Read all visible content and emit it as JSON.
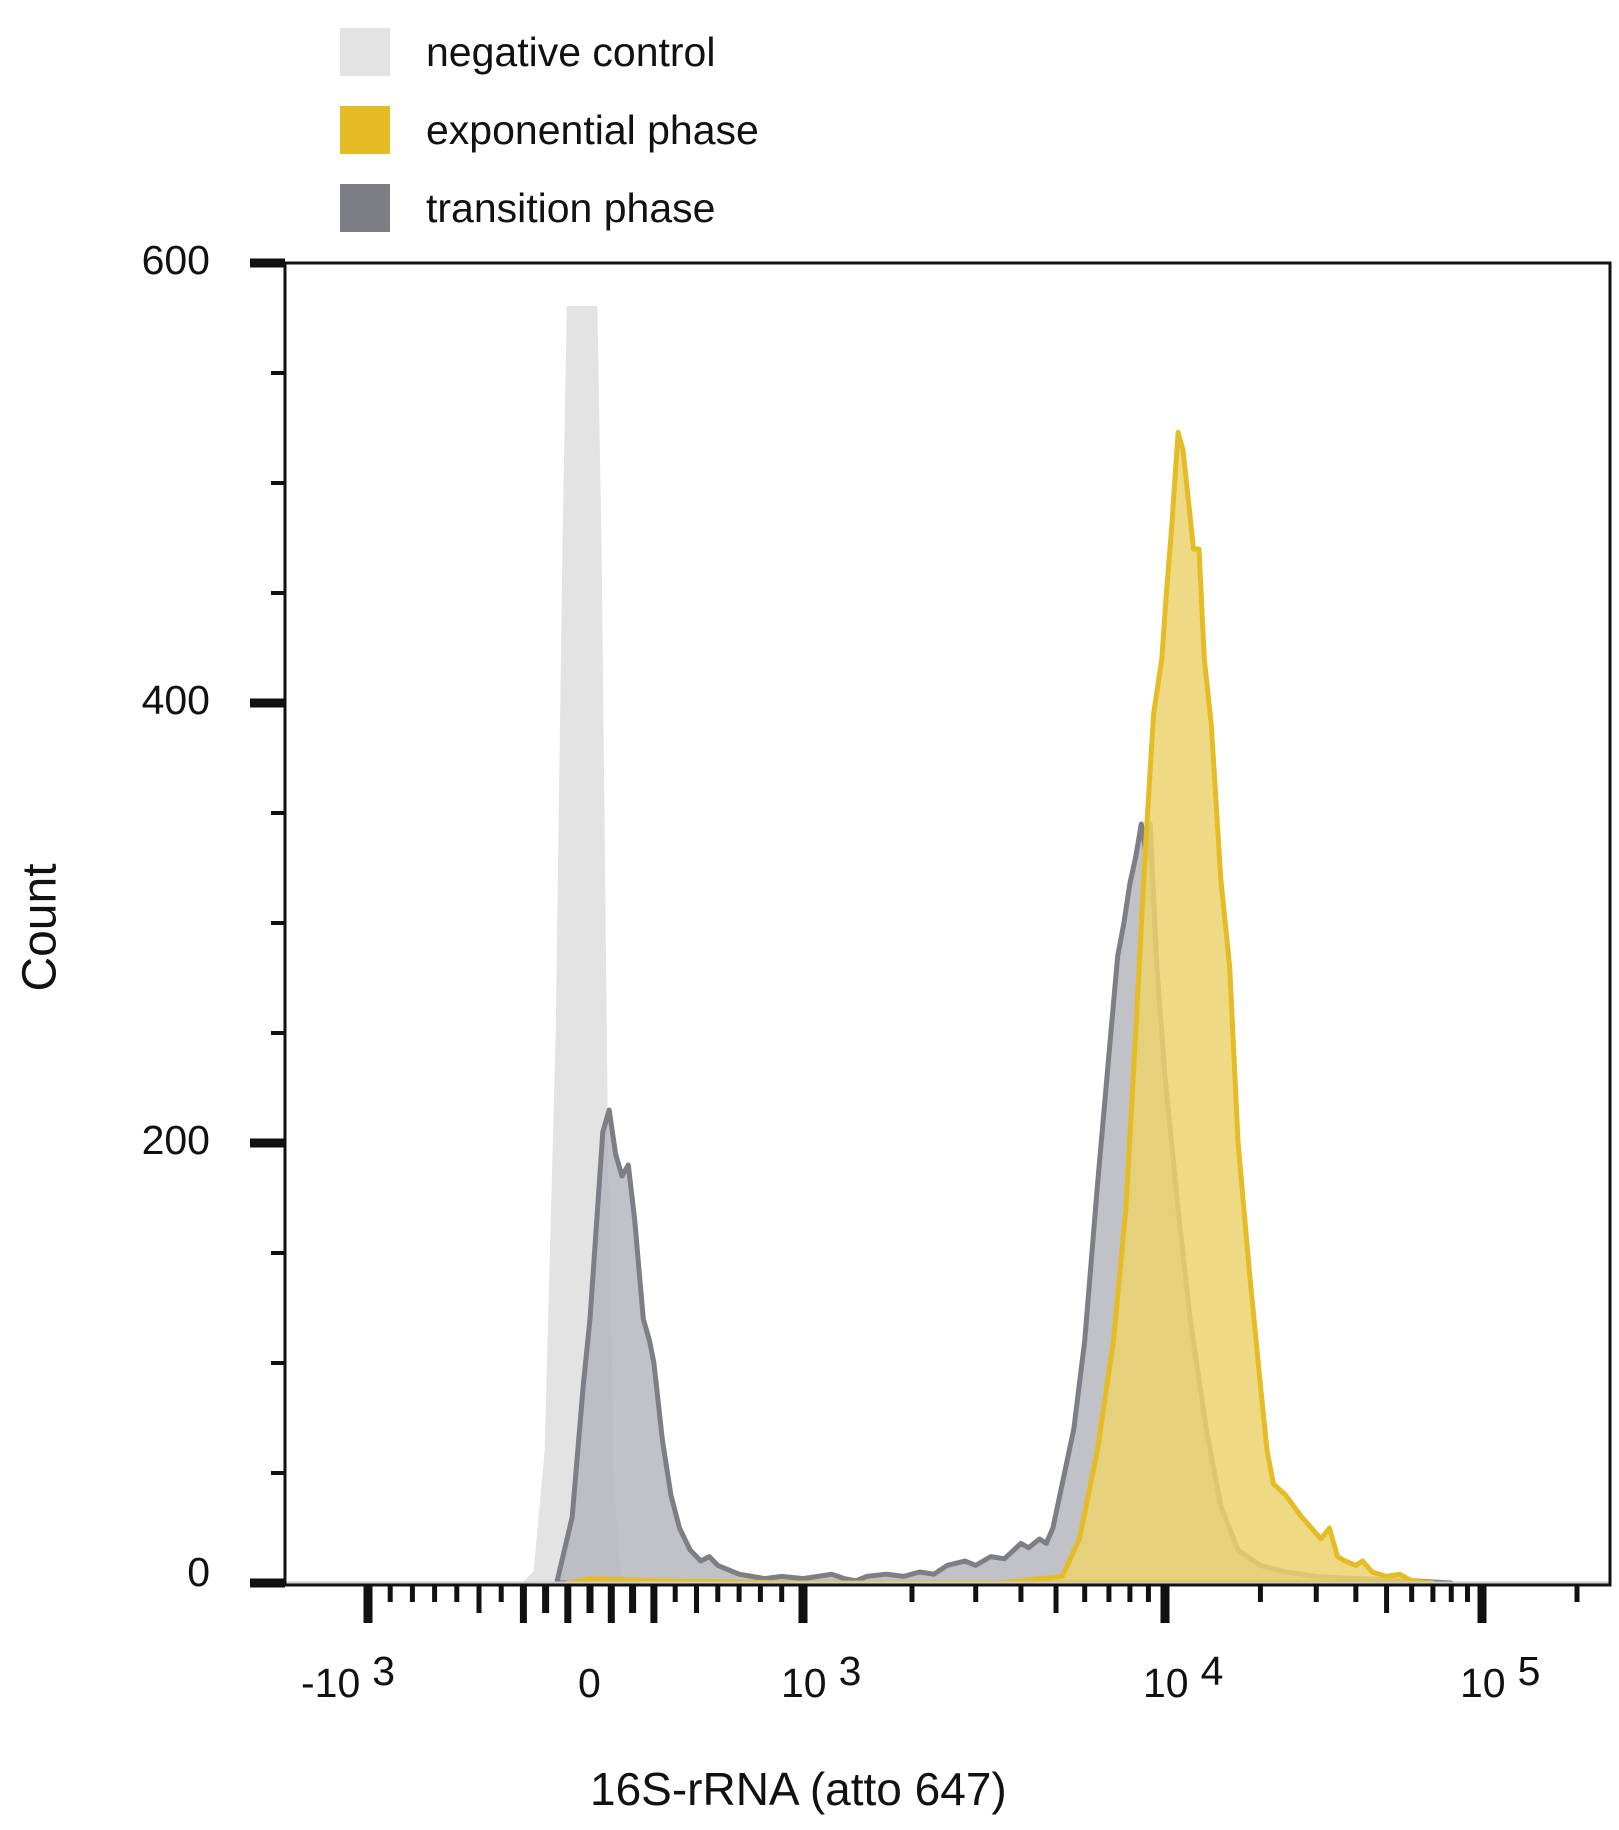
{
  "legend": [
    {
      "label": "negative control",
      "color": "#e3e3e3"
    },
    {
      "label": "exponential phase",
      "color": "#e6bc26"
    },
    {
      "label": "transition phase",
      "color": "#7d7e86"
    }
  ],
  "axes": {
    "ylabel": "Count",
    "xlabel": "16S-rRNA (atto 647)",
    "yticks": [
      {
        "value": 0,
        "label": "0"
      },
      {
        "value": 200,
        "label": "200"
      },
      {
        "value": 400,
        "label": "400"
      },
      {
        "value": 600,
        "label": "600"
      }
    ],
    "xticks": [
      {
        "base": "-10",
        "exp": "3",
        "value": -1000
      },
      {
        "base": "0",
        "exp": "",
        "value": 0
      },
      {
        "base": "10",
        "exp": "3",
        "value": 1000
      },
      {
        "base": "10",
        "exp": "4",
        "value": 10000
      },
      {
        "base": "10",
        "exp": "5",
        "value": 100000
      }
    ]
  },
  "chart_data": {
    "type": "area",
    "title": "",
    "xlabel": "16S-rRNA (atto 647)",
    "ylabel": "Count",
    "xscale": "biexponential",
    "xticks": [
      "-10^3",
      "0",
      "10^3",
      "10^4",
      "10^5"
    ],
    "yticks": [
      0,
      200,
      400,
      600
    ],
    "ylim": [
      0,
      600
    ],
    "xlim": [
      -2500,
      200000
    ],
    "grid": false,
    "legend_position": "top-left, above plot",
    "series": [
      {
        "name": "negative control",
        "fill": "#e3e3e3",
        "stroke": "#e3e3e3",
        "points": [
          [
            -300,
            0
          ],
          [
            -250,
            5
          ],
          [
            -200,
            60
          ],
          [
            -150,
            250
          ],
          [
            -120,
            470
          ],
          [
            -100,
            580
          ],
          [
            -50,
            580
          ],
          [
            0,
            580
          ],
          [
            30,
            580
          ],
          [
            50,
            470
          ],
          [
            80,
            200
          ],
          [
            110,
            40
          ],
          [
            140,
            5
          ],
          [
            170,
            0
          ]
        ]
      },
      {
        "name": "transition phase",
        "fill": "#b6b7bd",
        "stroke": "#7d7e86",
        "points": [
          [
            -150,
            0
          ],
          [
            -80,
            30
          ],
          [
            -30,
            90
          ],
          [
            0,
            120
          ],
          [
            60,
            205
          ],
          [
            90,
            215
          ],
          [
            120,
            195
          ],
          [
            150,
            185
          ],
          [
            180,
            190
          ],
          [
            210,
            165
          ],
          [
            250,
            120
          ],
          [
            280,
            110
          ],
          [
            300,
            100
          ],
          [
            340,
            65
          ],
          [
            380,
            40
          ],
          [
            420,
            25
          ],
          [
            470,
            15
          ],
          [
            520,
            10
          ],
          [
            560,
            12
          ],
          [
            600,
            8
          ],
          [
            650,
            6
          ],
          [
            700,
            4
          ],
          [
            760,
            3
          ],
          [
            820,
            2
          ],
          [
            900,
            3
          ],
          [
            1000,
            2
          ],
          [
            1100,
            3
          ],
          [
            1200,
            4
          ],
          [
            1300,
            2
          ],
          [
            1400,
            1
          ],
          [
            1500,
            3
          ],
          [
            1700,
            4
          ],
          [
            1900,
            3
          ],
          [
            2100,
            5
          ],
          [
            2300,
            4
          ],
          [
            2500,
            8
          ],
          [
            2800,
            10
          ],
          [
            3000,
            8
          ],
          [
            3300,
            12
          ],
          [
            3600,
            11
          ],
          [
            4000,
            18
          ],
          [
            4200,
            16
          ],
          [
            4500,
            20
          ],
          [
            4700,
            18
          ],
          [
            4900,
            25
          ],
          [
            5200,
            45
          ],
          [
            5600,
            70
          ],
          [
            6000,
            110
          ],
          [
            6500,
            180
          ],
          [
            7000,
            240
          ],
          [
            7400,
            285
          ],
          [
            7700,
            300
          ],
          [
            8000,
            318
          ],
          [
            8300,
            330
          ],
          [
            8600,
            345
          ],
          [
            8900,
            330
          ],
          [
            9100,
            345
          ],
          [
            9500,
            280
          ],
          [
            10000,
            230
          ],
          [
            11000,
            170
          ],
          [
            12000,
            120
          ],
          [
            13500,
            70
          ],
          [
            15000,
            35
          ],
          [
            17000,
            15
          ],
          [
            20000,
            8
          ],
          [
            24000,
            5
          ],
          [
            30000,
            3
          ],
          [
            40000,
            2
          ],
          [
            60000,
            1
          ],
          [
            80000,
            0
          ]
        ]
      },
      {
        "name": "exponential phase",
        "fill": "#ebd46e",
        "stroke": "#e6bc26",
        "points": [
          [
            -100,
            0
          ],
          [
            0,
            2
          ],
          [
            300,
            1
          ],
          [
            1000,
            0
          ],
          [
            3500,
            0
          ],
          [
            5200,
            3
          ],
          [
            5800,
            20
          ],
          [
            6500,
            60
          ],
          [
            7200,
            110
          ],
          [
            7800,
            170
          ],
          [
            8300,
            250
          ],
          [
            8800,
            330
          ],
          [
            9300,
            395
          ],
          [
            9800,
            420
          ],
          [
            10100,
            450
          ],
          [
            10500,
            480
          ],
          [
            11000,
            523
          ],
          [
            11400,
            515
          ],
          [
            11900,
            490
          ],
          [
            12300,
            470
          ],
          [
            12800,
            470
          ],
          [
            13300,
            420
          ],
          [
            14000,
            390
          ],
          [
            15000,
            320
          ],
          [
            16000,
            280
          ],
          [
            17000,
            200
          ],
          [
            18500,
            140
          ],
          [
            20000,
            90
          ],
          [
            21000,
            60
          ],
          [
            22000,
            45
          ],
          [
            24000,
            40
          ],
          [
            27000,
            30
          ],
          [
            29000,
            25
          ],
          [
            31000,
            20
          ],
          [
            33000,
            25
          ],
          [
            35000,
            12
          ],
          [
            37000,
            10
          ],
          [
            40000,
            8
          ],
          [
            42000,
            10
          ],
          [
            45000,
            5
          ],
          [
            50000,
            3
          ],
          [
            55000,
            4
          ],
          [
            60000,
            1
          ],
          [
            70000,
            0
          ]
        ]
      }
    ]
  }
}
